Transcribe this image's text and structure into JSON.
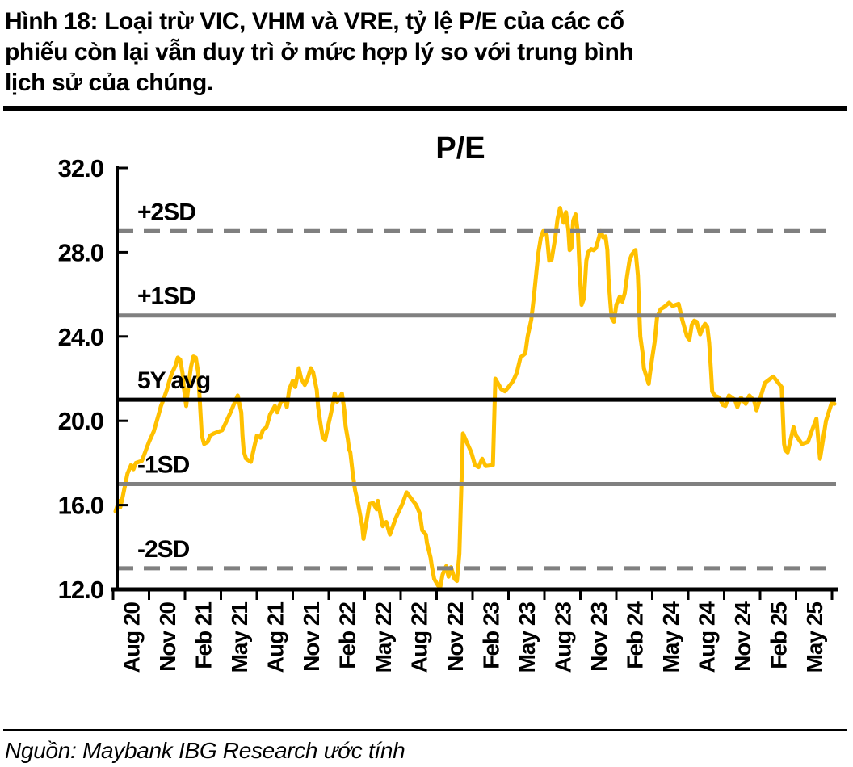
{
  "figure": {
    "title_lines": [
      "Hình 18: Loại trừ VIC, VHM và VRE, tỷ lệ P/E của các cổ",
      "phiếu còn lại vẫn duy trì ở mức hợp lý so với trung bình",
      "lịch sử của chúng."
    ],
    "source": "Nguồn: Maybank IBG Research ước tính"
  },
  "colors": {
    "series": "#FFC000",
    "band_gray": "#808080",
    "axis_black": "#000000"
  },
  "chart_data": {
    "type": "line",
    "title": "P/E",
    "xlabel": "",
    "ylabel": "",
    "grid": "off",
    "legend": "none",
    "y_axis": {
      "min": 12.0,
      "max": 32.0,
      "tick_values": [
        32,
        28,
        24,
        20,
        16,
        12
      ],
      "tick_labels": [
        "32.0",
        "28.0",
        "24.0",
        "20.0",
        "16.0",
        "12.0"
      ]
    },
    "x_axis": {
      "unit": "months since Aug 2020",
      "months_span": 60,
      "months_per_label": 3,
      "labels": [
        "Aug 20",
        "Nov 20",
        "Feb 21",
        "May 21",
        "Aug 21",
        "Nov 21",
        "Feb 22",
        "May 22",
        "Aug 22",
        "Nov 22",
        "Feb 23",
        "May 23",
        "Aug 23",
        "Nov 23",
        "Feb 24",
        "May 24",
        "Aug 24",
        "Nov 24",
        "Feb 25",
        "May 25"
      ]
    },
    "reference_lines": [
      {
        "id": "plus-2sd",
        "label": "+2SD",
        "value": 29.0,
        "style": "dashed",
        "color": "#808080"
      },
      {
        "id": "plus-1sd",
        "label": "+1SD",
        "value": 25.0,
        "style": "solid",
        "color": "#808080"
      },
      {
        "id": "avg-5y",
        "label": "5Y avg",
        "value": 21.0,
        "style": "solid",
        "color": "#000000"
      },
      {
        "id": "minus-1sd",
        "label": "-1SD",
        "value": 17.0,
        "style": "solid",
        "color": "#808080"
      },
      {
        "id": "minus-2sd",
        "label": "-2SD",
        "value": 13.0,
        "style": "dashed",
        "color": "#808080"
      }
    ],
    "series": [
      {
        "name": "P/E",
        "color": "#FFC000",
        "points": [
          [
            0.2,
            15.7
          ],
          [
            0.5,
            16.2
          ],
          [
            0.6,
            15.9
          ],
          [
            0.8,
            16.4
          ],
          [
            1.2,
            17.5
          ],
          [
            1.5,
            17.9
          ],
          [
            1.7,
            17.7
          ],
          [
            1.9,
            18.0
          ],
          [
            2.4,
            18.1
          ],
          [
            2.6,
            18.4
          ],
          [
            2.8,
            18.7
          ],
          [
            3.0,
            19.0
          ],
          [
            3.4,
            19.5
          ],
          [
            3.6,
            19.9
          ],
          [
            3.8,
            20.3
          ],
          [
            4.0,
            20.7
          ],
          [
            4.2,
            21.0
          ],
          [
            4.5,
            21.5
          ],
          [
            4.7,
            21.9
          ],
          [
            4.9,
            22.25
          ],
          [
            5.2,
            22.6
          ],
          [
            5.4,
            23.0
          ],
          [
            5.6,
            22.9
          ],
          [
            5.8,
            22.25
          ],
          [
            5.9,
            21.6
          ],
          [
            6.1,
            20.7
          ],
          [
            6.3,
            21.7
          ],
          [
            6.5,
            22.55
          ],
          [
            6.7,
            23.05
          ],
          [
            6.9,
            23.0
          ],
          [
            7.1,
            22.3
          ],
          [
            7.2,
            21.3
          ],
          [
            7.4,
            19.3
          ],
          [
            7.6,
            18.9
          ],
          [
            7.9,
            19.0
          ],
          [
            8.1,
            19.3
          ],
          [
            8.4,
            19.4
          ],
          [
            9.1,
            19.55
          ],
          [
            9.4,
            19.9
          ],
          [
            9.8,
            20.4
          ],
          [
            10.1,
            20.8
          ],
          [
            10.4,
            21.2
          ],
          [
            10.7,
            20.4
          ],
          [
            10.8,
            19.3
          ],
          [
            10.9,
            18.55
          ],
          [
            11.1,
            18.2
          ],
          [
            11.5,
            18.05
          ],
          [
            11.8,
            18.8
          ],
          [
            12.0,
            19.3
          ],
          [
            12.3,
            19.2
          ],
          [
            12.5,
            19.55
          ],
          [
            12.8,
            19.7
          ],
          [
            13.1,
            20.3
          ],
          [
            13.5,
            20.7
          ],
          [
            13.7,
            20.4
          ],
          [
            14.0,
            20.9
          ],
          [
            14.3,
            21.0
          ],
          [
            14.5,
            20.65
          ],
          [
            14.7,
            21.5
          ],
          [
            15.0,
            21.9
          ],
          [
            15.2,
            21.6
          ],
          [
            15.5,
            22.5
          ],
          [
            15.7,
            22.0
          ],
          [
            16.0,
            21.7
          ],
          [
            16.2,
            21.95
          ],
          [
            16.5,
            22.5
          ],
          [
            16.7,
            22.3
          ],
          [
            17.0,
            21.45
          ],
          [
            17.1,
            20.7
          ],
          [
            17.3,
            19.9
          ],
          [
            17.5,
            19.2
          ],
          [
            17.7,
            19.1
          ],
          [
            18.0,
            19.9
          ],
          [
            18.2,
            20.4
          ],
          [
            18.5,
            21.3
          ],
          [
            18.7,
            20.9
          ],
          [
            19.1,
            21.3
          ],
          [
            19.3,
            20.5
          ],
          [
            19.4,
            19.75
          ],
          [
            19.6,
            19.1
          ],
          [
            19.7,
            18.65
          ],
          [
            19.8,
            18.5
          ],
          [
            20.0,
            17.5
          ],
          [
            20.2,
            16.7
          ],
          [
            20.4,
            16.2
          ],
          [
            20.8,
            15.0
          ],
          [
            20.9,
            14.4
          ],
          [
            21.4,
            16.05
          ],
          [
            21.7,
            16.1
          ],
          [
            22.0,
            15.8
          ],
          [
            22.1,
            16.2
          ],
          [
            22.5,
            15.0
          ],
          [
            22.8,
            15.2
          ],
          [
            23.1,
            14.6
          ],
          [
            23.6,
            15.4
          ],
          [
            24.1,
            16.0
          ],
          [
            24.5,
            16.6
          ],
          [
            24.9,
            16.3
          ],
          [
            25.3,
            16.0
          ],
          [
            25.6,
            15.6
          ],
          [
            25.8,
            14.8
          ],
          [
            26.1,
            14.6
          ],
          [
            26.2,
            14.2
          ],
          [
            26.5,
            13.5
          ],
          [
            26.6,
            13.1
          ],
          [
            26.8,
            12.5
          ],
          [
            27.1,
            12.2
          ],
          [
            27.3,
            12.1
          ],
          [
            27.5,
            12.7
          ],
          [
            27.8,
            13.1
          ],
          [
            28.0,
            12.6
          ],
          [
            28.2,
            13.05
          ],
          [
            28.5,
            12.5
          ],
          [
            28.7,
            12.4
          ],
          [
            28.9,
            13.7
          ],
          [
            29.2,
            19.4
          ],
          [
            29.5,
            19.0
          ],
          [
            29.9,
            18.5
          ],
          [
            30.2,
            17.9
          ],
          [
            30.5,
            17.8
          ],
          [
            30.8,
            18.2
          ],
          [
            31.1,
            17.85
          ],
          [
            31.7,
            17.9
          ],
          [
            31.9,
            22.0
          ],
          [
            32.4,
            21.5
          ],
          [
            32.7,
            21.4
          ],
          [
            33.0,
            21.6
          ],
          [
            33.4,
            21.9
          ],
          [
            33.7,
            22.3
          ],
          [
            34.0,
            23.0
          ],
          [
            34.4,
            23.2
          ],
          [
            34.6,
            24.0
          ],
          [
            34.9,
            24.8
          ],
          [
            35.1,
            25.8
          ],
          [
            35.3,
            26.9
          ],
          [
            35.5,
            28.0
          ],
          [
            35.7,
            28.7
          ],
          [
            35.9,
            29.0
          ],
          [
            36.2,
            28.8
          ],
          [
            36.4,
            27.6
          ],
          [
            36.6,
            27.65
          ],
          [
            36.9,
            28.7
          ],
          [
            37.1,
            29.6
          ],
          [
            37.3,
            30.1
          ],
          [
            37.45,
            29.75
          ],
          [
            37.6,
            29.4
          ],
          [
            37.8,
            29.9
          ],
          [
            38.0,
            29.0
          ],
          [
            38.1,
            28.1
          ],
          [
            38.25,
            28.2
          ],
          [
            38.4,
            29.5
          ],
          [
            38.6,
            29.8
          ],
          [
            38.8,
            28.9
          ],
          [
            38.9,
            27.6
          ],
          [
            39.0,
            26.5
          ],
          [
            39.1,
            25.5
          ],
          [
            39.3,
            25.8
          ],
          [
            39.5,
            27.6
          ],
          [
            39.65,
            28.0
          ],
          [
            39.9,
            28.15
          ],
          [
            40.1,
            28.1
          ],
          [
            40.3,
            28.2
          ],
          [
            40.6,
            28.8
          ],
          [
            40.7,
            29.0
          ],
          [
            40.9,
            28.7
          ],
          [
            41.1,
            28.75
          ],
          [
            41.25,
            28.1
          ],
          [
            41.35,
            26.7
          ],
          [
            41.5,
            25.6
          ],
          [
            41.6,
            24.9
          ],
          [
            41.8,
            24.7
          ],
          [
            42.0,
            25.5
          ],
          [
            42.3,
            25.9
          ],
          [
            42.5,
            25.65
          ],
          [
            42.7,
            26.05
          ],
          [
            42.9,
            26.9
          ],
          [
            43.1,
            27.6
          ],
          [
            43.3,
            27.9
          ],
          [
            43.6,
            28.1
          ],
          [
            43.8,
            26.9
          ],
          [
            43.9,
            25.4
          ],
          [
            44.0,
            24.0
          ],
          [
            44.2,
            23.2
          ],
          [
            44.3,
            22.5
          ],
          [
            44.7,
            21.75
          ],
          [
            44.8,
            22.2
          ],
          [
            45.0,
            23.0
          ],
          [
            45.2,
            23.75
          ],
          [
            45.4,
            24.9
          ],
          [
            45.7,
            25.3
          ],
          [
            46.0,
            25.4
          ],
          [
            46.4,
            25.6
          ],
          [
            46.7,
            25.45
          ],
          [
            47.2,
            25.55
          ],
          [
            47.5,
            24.8
          ],
          [
            47.9,
            24.0
          ],
          [
            48.1,
            23.85
          ],
          [
            48.3,
            24.55
          ],
          [
            48.5,
            24.75
          ],
          [
            48.7,
            24.7
          ],
          [
            49.0,
            24.1
          ],
          [
            49.2,
            24.4
          ],
          [
            49.4,
            24.6
          ],
          [
            49.6,
            24.45
          ],
          [
            49.75,
            23.7
          ],
          [
            49.9,
            22.4
          ],
          [
            50.0,
            21.4
          ],
          [
            50.2,
            21.2
          ],
          [
            50.6,
            21.1
          ],
          [
            50.9,
            20.75
          ],
          [
            51.1,
            20.7
          ],
          [
            51.4,
            21.2
          ],
          [
            51.9,
            21.0
          ],
          [
            52.1,
            20.65
          ],
          [
            52.4,
            21.1
          ],
          [
            52.8,
            20.8
          ],
          [
            53.1,
            21.2
          ],
          [
            53.5,
            20.95
          ],
          [
            53.7,
            20.5
          ],
          [
            54.4,
            21.8
          ],
          [
            55.1,
            22.1
          ],
          [
            55.8,
            21.6
          ],
          [
            56.0,
            18.9
          ],
          [
            56.1,
            18.6
          ],
          [
            56.3,
            18.5
          ],
          [
            56.8,
            19.7
          ],
          [
            57.0,
            19.3
          ],
          [
            57.5,
            18.9
          ],
          [
            58.0,
            19.0
          ],
          [
            58.3,
            19.5
          ],
          [
            58.7,
            20.1
          ],
          [
            59.0,
            18.2
          ],
          [
            59.5,
            20.0
          ],
          [
            60.0,
            20.9
          ],
          [
            60.2,
            20.8
          ]
        ]
      }
    ]
  }
}
